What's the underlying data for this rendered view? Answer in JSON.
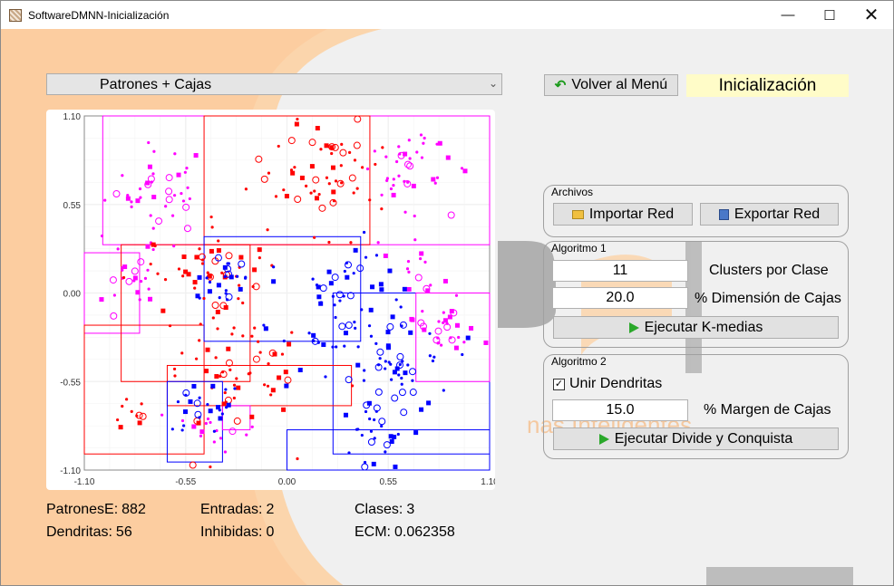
{
  "window": {
    "title": "SoftwareDMNN-Inicialización"
  },
  "view_select": {
    "value": "Patrones + Cajas"
  },
  "menu_button": {
    "label": "Volver al Menú"
  },
  "mode_label": "Inicialización",
  "watermark_text": "nas Inteligentes",
  "archivos": {
    "title": "Archivos",
    "import_label": "Importar Red",
    "export_label": "Exportar Red"
  },
  "algoritmo1": {
    "title": "Algoritmo 1",
    "clusters_value": "11",
    "clusters_label": "Clusters por Clase",
    "dim_value": "20.0",
    "dim_label": "% Dimensión de Cajas",
    "run_label": "Ejecutar K-medias"
  },
  "algoritmo2": {
    "title": "Algoritmo 2",
    "merge_label": "Unir Dendritas",
    "merge_checked": true,
    "margin_value": "15.0",
    "margin_label": "% Margen de Cajas",
    "run_label": "Ejecutar Divide y Conquista"
  },
  "stats": {
    "patrones_label": "PatronesE:",
    "patrones_value": "882",
    "entradas_label": "Entradas:",
    "entradas_value": "2",
    "clases_label": "Clases:",
    "clases_value": "3",
    "dendritas_label": "Dendritas:",
    "dendritas_value": "56",
    "inhibidas_label": "Inhibidas:",
    "inhibidas_value": "0",
    "ecm_label": "ECM:",
    "ecm_value": "0.062358"
  },
  "chart_data": {
    "type": "scatter",
    "title": "",
    "xlim": [
      -1.1,
      1.1
    ],
    "ylim": [
      -1.1,
      1.1
    ],
    "x_ticks": [
      "-1.10",
      "-0.55",
      "0.00",
      "0.55",
      "1.10"
    ],
    "y_ticks": [
      "1.10",
      "0.55",
      "0.00",
      "-0.55",
      "-1.10"
    ],
    "grid": true,
    "colors": {
      "class1": "#ff00ff",
      "class2": "#ff0000",
      "class3": "#0000ff"
    },
    "series": [
      {
        "class": "class1",
        "clusters": [
          {
            "x": -0.7,
            "y": 0.65,
            "n": 40,
            "sd": 0.14
          },
          {
            "x": 0.65,
            "y": 0.75,
            "n": 40,
            "sd": 0.12
          },
          {
            "x": -0.85,
            "y": 0.1,
            "n": 25,
            "sd": 0.1
          },
          {
            "x": 0.85,
            "y": -0.2,
            "n": 30,
            "sd": 0.1
          },
          {
            "x": -0.4,
            "y": -0.85,
            "n": 15,
            "sd": 0.08
          },
          {
            "x": 0.7,
            "y": 0.15,
            "n": 15,
            "sd": 0.08
          }
        ]
      },
      {
        "class": "class2",
        "clusters": [
          {
            "x": 0.2,
            "y": 0.75,
            "n": 60,
            "sd": 0.18
          },
          {
            "x": -0.5,
            "y": 0.1,
            "n": 50,
            "sd": 0.18
          },
          {
            "x": -0.3,
            "y": -0.5,
            "n": 60,
            "sd": 0.2
          },
          {
            "x": -0.85,
            "y": -0.75,
            "n": 10,
            "sd": 0.06
          }
        ]
      },
      {
        "class": "class3",
        "clusters": [
          {
            "x": 0.3,
            "y": -0.1,
            "n": 70,
            "sd": 0.2
          },
          {
            "x": 0.6,
            "y": -0.45,
            "n": 40,
            "sd": 0.15
          },
          {
            "x": 0.45,
            "y": -0.85,
            "n": 30,
            "sd": 0.12
          },
          {
            "x": -0.45,
            "y": -0.75,
            "n": 25,
            "sd": 0.1
          },
          {
            "x": -0.35,
            "y": 0.1,
            "n": 25,
            "sd": 0.1
          }
        ]
      }
    ],
    "boxes": [
      {
        "class": "class1",
        "x": [
          -1.0,
          1.2
        ],
        "y": [
          0.3,
          1.1
        ]
      },
      {
        "class": "class1",
        "x": [
          -1.1,
          -0.8
        ],
        "y": [
          -0.25,
          0.25
        ]
      },
      {
        "class": "class2",
        "x": [
          -0.45,
          0.45
        ],
        "y": [
          0.3,
          1.1
        ]
      },
      {
        "class": "class2",
        "x": [
          -0.9,
          -0.2
        ],
        "y": [
          -0.55,
          0.3
        ]
      },
      {
        "class": "class2",
        "x": [
          -1.1,
          -0.45
        ],
        "y": [
          -1.0,
          -0.2
        ]
      },
      {
        "class": "class3",
        "x": [
          -0.45,
          0.4
        ],
        "y": [
          -0.3,
          0.35
        ]
      },
      {
        "class": "class3",
        "x": [
          0.25,
          1.1
        ],
        "y": [
          -1.0,
          0.0
        ]
      },
      {
        "class": "class3",
        "x": [
          0.0,
          1.1
        ],
        "y": [
          -1.1,
          -0.85
        ]
      },
      {
        "class": "class1",
        "x": [
          0.7,
          1.1
        ],
        "y": [
          -0.55,
          0.0
        ]
      },
      {
        "class": "class2",
        "x": [
          -0.65,
          0.35
        ],
        "y": [
          -0.7,
          -0.45
        ]
      },
      {
        "class": "class3",
        "x": [
          -0.65,
          -0.35
        ],
        "y": [
          -1.05,
          -0.55
        ]
      },
      {
        "class": "class1",
        "x": [
          -0.35,
          -0.2
        ],
        "y": [
          -0.85,
          -0.7
        ]
      }
    ]
  }
}
